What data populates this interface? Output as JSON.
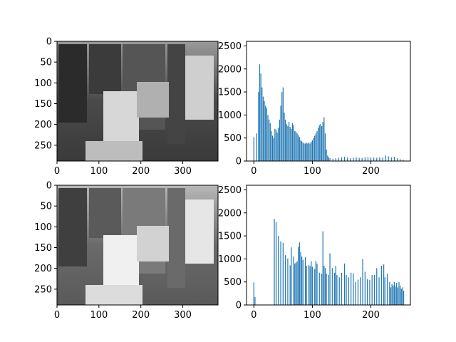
{
  "chart_data": [
    {
      "type": "image",
      "title": "",
      "xlabel": "",
      "ylabel": "",
      "xlim": [
        0,
        384
      ],
      "ylim": [
        288,
        0
      ],
      "xticks": [
        0,
        100,
        200,
        300
      ],
      "yticks": [
        0,
        50,
        100,
        150,
        200,
        250
      ],
      "content": "grayscale photo (original)"
    },
    {
      "type": "bar",
      "title": "",
      "xlabel": "",
      "ylabel": "",
      "xlim": [
        -12.5,
        267.5
      ],
      "ylim": [
        0,
        2600
      ],
      "xticks": [
        0,
        100,
        200
      ],
      "yticks": [
        0,
        500,
        1000,
        1500,
        2000,
        2500
      ],
      "color": "#1f77b4",
      "bin_width": 1,
      "points": [
        [
          0,
          520
        ],
        [
          5,
          600
        ],
        [
          8,
          1500
        ],
        [
          10,
          2100
        ],
        [
          12,
          1900
        ],
        [
          14,
          1600
        ],
        [
          16,
          1400
        ],
        [
          18,
          1300
        ],
        [
          20,
          1200
        ],
        [
          22,
          1150
        ],
        [
          24,
          1000
        ],
        [
          26,
          900
        ],
        [
          28,
          820
        ],
        [
          30,
          650
        ],
        [
          32,
          550
        ],
        [
          34,
          500
        ],
        [
          36,
          700
        ],
        [
          38,
          680
        ],
        [
          40,
          620
        ],
        [
          42,
          720
        ],
        [
          44,
          900
        ],
        [
          46,
          1200
        ],
        [
          48,
          1500
        ],
        [
          50,
          1600
        ],
        [
          52,
          1050
        ],
        [
          54,
          900
        ],
        [
          56,
          800
        ],
        [
          58,
          760
        ],
        [
          60,
          850
        ],
        [
          62,
          740
        ],
        [
          64,
          700
        ],
        [
          66,
          820
        ],
        [
          68,
          780
        ],
        [
          70,
          650
        ],
        [
          72,
          640
        ],
        [
          74,
          600
        ],
        [
          76,
          560
        ],
        [
          78,
          520
        ],
        [
          80,
          450
        ],
        [
          82,
          430
        ],
        [
          84,
          400
        ],
        [
          86,
          380
        ],
        [
          88,
          380
        ],
        [
          90,
          400
        ],
        [
          92,
          380
        ],
        [
          94,
          400
        ],
        [
          96,
          380
        ],
        [
          98,
          420
        ],
        [
          100,
          450
        ],
        [
          102,
          500
        ],
        [
          104,
          550
        ],
        [
          106,
          600
        ],
        [
          108,
          650
        ],
        [
          110,
          720
        ],
        [
          112,
          780
        ],
        [
          114,
          800
        ],
        [
          116,
          760
        ],
        [
          118,
          850
        ],
        [
          120,
          950
        ],
        [
          122,
          600
        ],
        [
          124,
          250
        ],
        [
          126,
          120
        ],
        [
          128,
          80
        ],
        [
          130,
          60
        ],
        [
          135,
          50
        ],
        [
          140,
          60
        ],
        [
          145,
          70
        ],
        [
          150,
          80
        ],
        [
          155,
          90
        ],
        [
          160,
          75
        ],
        [
          165,
          60
        ],
        [
          170,
          70
        ],
        [
          175,
          80
        ],
        [
          180,
          70
        ],
        [
          185,
          65
        ],
        [
          190,
          80
        ],
        [
          195,
          85
        ],
        [
          200,
          80
        ],
        [
          205,
          75
        ],
        [
          210,
          70
        ],
        [
          215,
          80
        ],
        [
          220,
          75
        ],
        [
          225,
          120
        ],
        [
          230,
          100
        ],
        [
          235,
          80
        ],
        [
          240,
          90
        ],
        [
          245,
          60
        ],
        [
          250,
          40
        ],
        [
          255,
          30
        ]
      ]
    },
    {
      "type": "image",
      "title": "",
      "xlabel": "",
      "ylabel": "",
      "xlim": [
        0,
        384
      ],
      "ylim": [
        288,
        0
      ],
      "xticks": [
        0,
        100,
        200,
        300
      ],
      "yticks": [
        0,
        50,
        100,
        150,
        200,
        250
      ],
      "content": "grayscale photo (histogram-equalized)"
    },
    {
      "type": "bar",
      "title": "",
      "xlabel": "",
      "ylabel": "",
      "xlim": [
        -12.5,
        267.5
      ],
      "ylim": [
        0,
        2600
      ],
      "xticks": [
        0,
        100,
        200
      ],
      "yticks": [
        0,
        500,
        1000,
        1500,
        2000,
        2500
      ],
      "color": "#1f77b4",
      "bin_width": 1,
      "points": [
        [
          0,
          490
        ],
        [
          2,
          170
        ],
        [
          35,
          1870
        ],
        [
          38,
          1800
        ],
        [
          42,
          1500
        ],
        [
          46,
          1380
        ],
        [
          50,
          1350
        ],
        [
          54,
          1080
        ],
        [
          58,
          1010
        ],
        [
          62,
          860
        ],
        [
          64,
          1250
        ],
        [
          68,
          1050
        ],
        [
          70,
          900
        ],
        [
          72,
          920
        ],
        [
          74,
          950
        ],
        [
          76,
          1260
        ],
        [
          78,
          1360
        ],
        [
          80,
          1150
        ],
        [
          82,
          1050
        ],
        [
          84,
          980
        ],
        [
          88,
          1040
        ],
        [
          90,
          850
        ],
        [
          94,
          870
        ],
        [
          96,
          840
        ],
        [
          98,
          950
        ],
        [
          100,
          830
        ],
        [
          104,
          780
        ],
        [
          106,
          960
        ],
        [
          108,
          900
        ],
        [
          112,
          700
        ],
        [
          116,
          680
        ],
        [
          118,
          1600
        ],
        [
          120,
          850
        ],
        [
          122,
          800
        ],
        [
          124,
          680
        ],
        [
          128,
          650
        ],
        [
          130,
          1120
        ],
        [
          134,
          800
        ],
        [
          138,
          700
        ],
        [
          140,
          850
        ],
        [
          142,
          650
        ],
        [
          146,
          600
        ],
        [
          150,
          700
        ],
        [
          155,
          900
        ],
        [
          158,
          650
        ],
        [
          162,
          600
        ],
        [
          166,
          700
        ],
        [
          170,
          690
        ],
        [
          174,
          500
        ],
        [
          178,
          550
        ],
        [
          182,
          600
        ],
        [
          186,
          1000
        ],
        [
          190,
          720
        ],
        [
          194,
          560
        ],
        [
          198,
          540
        ],
        [
          202,
          650
        ],
        [
          206,
          650
        ],
        [
          210,
          800
        ],
        [
          214,
          600
        ],
        [
          218,
          850
        ],
        [
          222,
          880
        ],
        [
          224,
          600
        ],
        [
          228,
          680
        ],
        [
          232,
          500
        ],
        [
          234,
          380
        ],
        [
          236,
          450
        ],
        [
          238,
          420
        ],
        [
          240,
          500
        ],
        [
          242,
          400
        ],
        [
          244,
          480
        ],
        [
          246,
          380
        ],
        [
          248,
          500
        ],
        [
          250,
          420
        ],
        [
          252,
          350
        ],
        [
          254,
          380
        ],
        [
          256,
          310
        ]
      ]
    }
  ]
}
